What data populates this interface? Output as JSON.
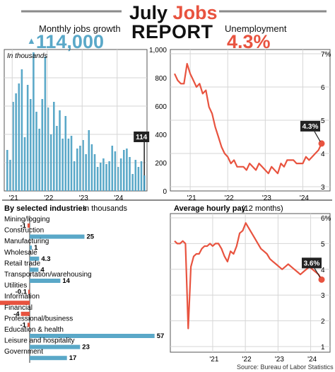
{
  "header": {
    "title_part1": "July",
    "title_part2": "Jobs",
    "title_part3": "REPORT"
  },
  "jobs": {
    "label": "Monthly jobs growth",
    "value": "114,000",
    "arrow": "▲"
  },
  "unemployment": {
    "label": "Unemployment",
    "value": "4.3%"
  },
  "source": "Source: Bureau of Labor Statistics",
  "colors": {
    "blue": "#5aa8c8",
    "red": "#e8533f",
    "grey": "#8a8a8a"
  },
  "chart_data": [
    {
      "id": "payrolls",
      "type": "bar",
      "annotation": "In thousands",
      "callout": "114",
      "ylim": [
        0,
        1000
      ],
      "yticks": [
        "0",
        "200",
        "400",
        "600",
        "800",
        "1,000"
      ],
      "xticks": [
        "'21",
        "'22",
        "'23",
        "'24"
      ],
      "x_start": "2020-11",
      "values": [
        290,
        220,
        630,
        690,
        760,
        860,
        380,
        750,
        650,
        980,
        560,
        440,
        650,
        950,
        590,
        400,
        630,
        460,
        570,
        370,
        530,
        370,
        390,
        210,
        300,
        320,
        360,
        260,
        430,
        330,
        260,
        170,
        200,
        230,
        190,
        210,
        320,
        280,
        170,
        230,
        290,
        300,
        240,
        120,
        220,
        170,
        210,
        110
      ]
    },
    {
      "id": "unemployment",
      "type": "line",
      "ylim": [
        3,
        7
      ],
      "yticks": [
        "3",
        "4",
        "5",
        "6",
        "7%"
      ],
      "xticks": [
        "'21",
        "'22",
        "'23",
        "'24"
      ],
      "x_start": "2020-08",
      "callout": "4.3%",
      "values": [
        6.4,
        6.2,
        6.1,
        6.1,
        6.7,
        6.4,
        6.2,
        6.0,
        6.1,
        5.8,
        5.9,
        5.4,
        5.2,
        4.8,
        4.5,
        4.2,
        4.0,
        3.9,
        3.7,
        3.8,
        3.6,
        3.6,
        3.6,
        3.5,
        3.7,
        3.6,
        3.5,
        3.7,
        3.6,
        3.5,
        3.4,
        3.6,
        3.5,
        3.4,
        3.7,
        3.6,
        3.8,
        3.8,
        3.8,
        3.7,
        3.7,
        3.7,
        3.9,
        3.8,
        3.9,
        4.0,
        4.1,
        4.3
      ]
    },
    {
      "id": "industries",
      "type": "bar",
      "title": "By selected industries",
      "unit": "In thousands",
      "categories": [
        "Mining/logging",
        "Construction",
        "Manufacturing",
        "Wholesale",
        "Retail trade",
        "Transportation/warehousing",
        "Utilities",
        "Information",
        "Financial",
        "Professional/business",
        "Education & health",
        "Leisure and hospitality",
        "Government"
      ],
      "values": [
        -1,
        25,
        1,
        4.3,
        4,
        14,
        -0.1,
        -20,
        -4,
        -1,
        57,
        23,
        17
      ],
      "labels": [
        "-1",
        "25",
        "1",
        "4.3",
        "4",
        "14",
        "-0.1",
        "-20",
        "-4",
        "-1",
        "57",
        "23",
        "17"
      ]
    },
    {
      "id": "wages",
      "type": "line",
      "title": "Average hourly pay",
      "subtitle": "(12 months)",
      "ylim": [
        1,
        6
      ],
      "yticks": [
        "1",
        "2",
        "3",
        "4",
        "5",
        "6%"
      ],
      "xticks": [
        "'21",
        "'22",
        "'23",
        "'24"
      ],
      "x_start": "2020-01",
      "callout": "3.6%",
      "values": [
        5.0,
        5.0,
        4.8,
        4.5,
        4.3,
        4.7,
        4.6,
        4.9,
        5.4,
        5.5,
        5.8,
        5.6,
        5.4,
        5.2,
        5.0,
        4.8,
        4.7,
        4.6,
        4.4,
        4.3,
        4.2,
        4.1,
        4.0,
        4.1,
        4.2,
        4.1,
        4.0,
        3.9,
        3.8,
        3.9,
        4.0,
        4.1,
        4.0,
        3.9,
        3.8,
        3.6
      ]
    }
  ]
}
